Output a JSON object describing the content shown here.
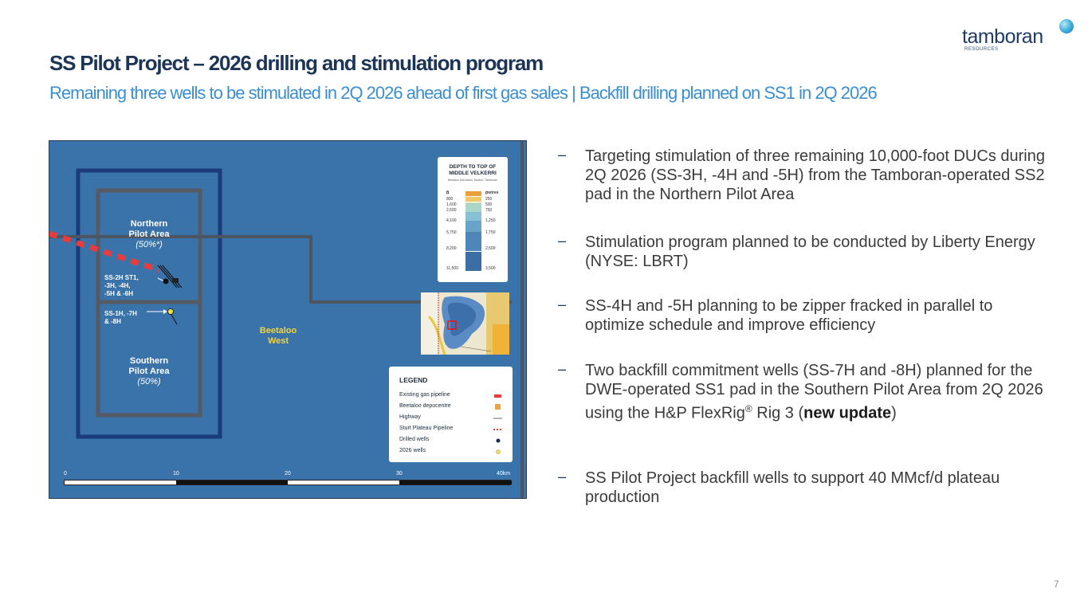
{
  "logo": {
    "name": "tamboran",
    "sub": "RESOURCES"
  },
  "title": "SS Pilot Project – 2026 drilling and stimulation program",
  "subtitle": "Remaining three wells to be stimulated in 2Q 2026 ahead of first gas sales | Backfill drilling planned on SS1 in 2Q 2026",
  "map": {
    "northern": {
      "title": "Northern\nPilot Area",
      "pct": "(50%*)"
    },
    "southern": {
      "title": "Southern\nPilot Area",
      "pct": "(50%)"
    },
    "beetaloo_west": "Beetaloo\nWest",
    "well_group_1": "SS-2H ST1,\n-3H, -4H,\n-5H & -6H",
    "well_group_2": "SS-1H, -7H\n& -8H",
    "depth_legend": {
      "title": "DEPTH TO TOP OF\nMIDDLE VELKERRI",
      "subtitle": "Beetaloo Sub-basin, Santos / Tamboran",
      "ft_header": "ft",
      "m_header": "metres",
      "rows": [
        {
          "ft": "0",
          "m": "0",
          "color": "#e9a03a"
        },
        {
          "ft": "800",
          "m": "250",
          "color": "#f0c86a"
        },
        {
          "ft": "1,600",
          "m": "500",
          "color": "#d9dfa8"
        },
        {
          "ft": "2,500",
          "m": "750",
          "color": "#a9d6c8"
        },
        {
          "ft": "4,100",
          "m": "1,250",
          "color": "#87bfd4"
        },
        {
          "ft": "5,750",
          "m": "1,750",
          "color": "#6aa3c9"
        },
        {
          "ft": "8,200",
          "m": "2,500",
          "color": "#4f86b8"
        },
        {
          "ft": "11,500",
          "m": "3,500",
          "color": "#3a6ea5"
        }
      ]
    },
    "legend": {
      "title": "LEGEND",
      "items": [
        {
          "label": "Existing gas pipeline",
          "symbol": "red-line-icon"
        },
        {
          "label": "Beetaloo depocentre",
          "symbol": "orange-square-icon"
        },
        {
          "label": "Highway",
          "symbol": "thin-line-icon"
        },
        {
          "label": "Sturt Plateau Pipeline",
          "symbol": "dashed-red-line-icon"
        },
        {
          "label": "Drilled wells",
          "symbol": "navy-dot-icon"
        },
        {
          "label": "2026 wells",
          "symbol": "yellow-dot-icon"
        }
      ]
    },
    "scale": {
      "labels": [
        "0",
        "10",
        "20",
        "30",
        "40km"
      ]
    }
  },
  "bullets": [
    {
      "text": "Targeting stimulation of three remaining 10,000-foot DUCs during 2Q 2026 (SS-3H, -4H and -5H) from the Tamboran-operated SS2 pad in the Northern Pilot Area"
    },
    {
      "text": "Stimulation program planned to be conducted by Liberty Energy (NYSE: LBRT)"
    },
    {
      "text": "SS-4H and -5H planning to be zipper fracked in parallel to optimize schedule and improve efficiency"
    },
    {
      "text_a": "Two backfill commitment wells (SS-7H and -8H) planned for the DWE-operated SS1 pad in the Southern Pilot Area from 2Q 2026 using the H&P FlexRig",
      "sup": "®",
      "text_b": " Rig 3 (",
      "bold": "new update",
      "text_c": ")"
    },
    {
      "text": "SS Pilot Project backfill wells to support 40 MMcf/d plateau production"
    }
  ],
  "dash": "–",
  "page_number": "7"
}
